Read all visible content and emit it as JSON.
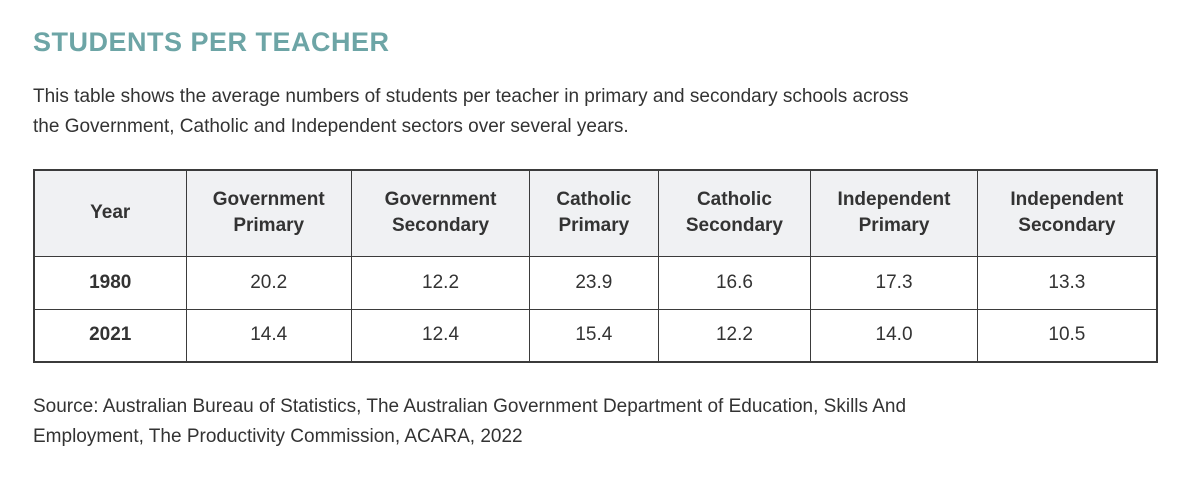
{
  "page": {
    "title": "STUDENTS PER TEACHER",
    "description_line1": "This table shows the average numbers of students per teacher in primary and secondary schools across",
    "description_line2": "the Government, Catholic and Independent sectors over several years.",
    "source_line1": "Source: Australian Bureau of Statistics, The Australian Government Department of Education, Skills And",
    "source_line2": "Employment, The Productivity Commission, ACARA, 2022"
  },
  "colors": {
    "title_accent": "#6da5a6",
    "body_text": "#333333",
    "table_border": "#3b3b3b",
    "header_bg": "#f0f1f3",
    "page_bg": "#ffffff"
  },
  "chart_data": {
    "type": "table",
    "title": "STUDENTS PER TEACHER",
    "columns": [
      "Year",
      "Government Primary",
      "Government Secondary",
      "Catholic Primary",
      "Catholic Secondary",
      "Independent Primary",
      "Independent Secondary"
    ],
    "rows": [
      {
        "year": "1980",
        "values": [
          20.2,
          12.2,
          23.9,
          16.6,
          17.3,
          13.3
        ],
        "display": [
          "20.2",
          "12.2",
          "23.9",
          "16.6",
          "17.3",
          "13.3"
        ]
      },
      {
        "year": "2021",
        "values": [
          14.4,
          12.4,
          15.4,
          12.2,
          14.0,
          10.5
        ],
        "display": [
          "14.4",
          "12.4",
          "15.4",
          "12.2",
          "14.0",
          "10.5"
        ]
      }
    ]
  }
}
